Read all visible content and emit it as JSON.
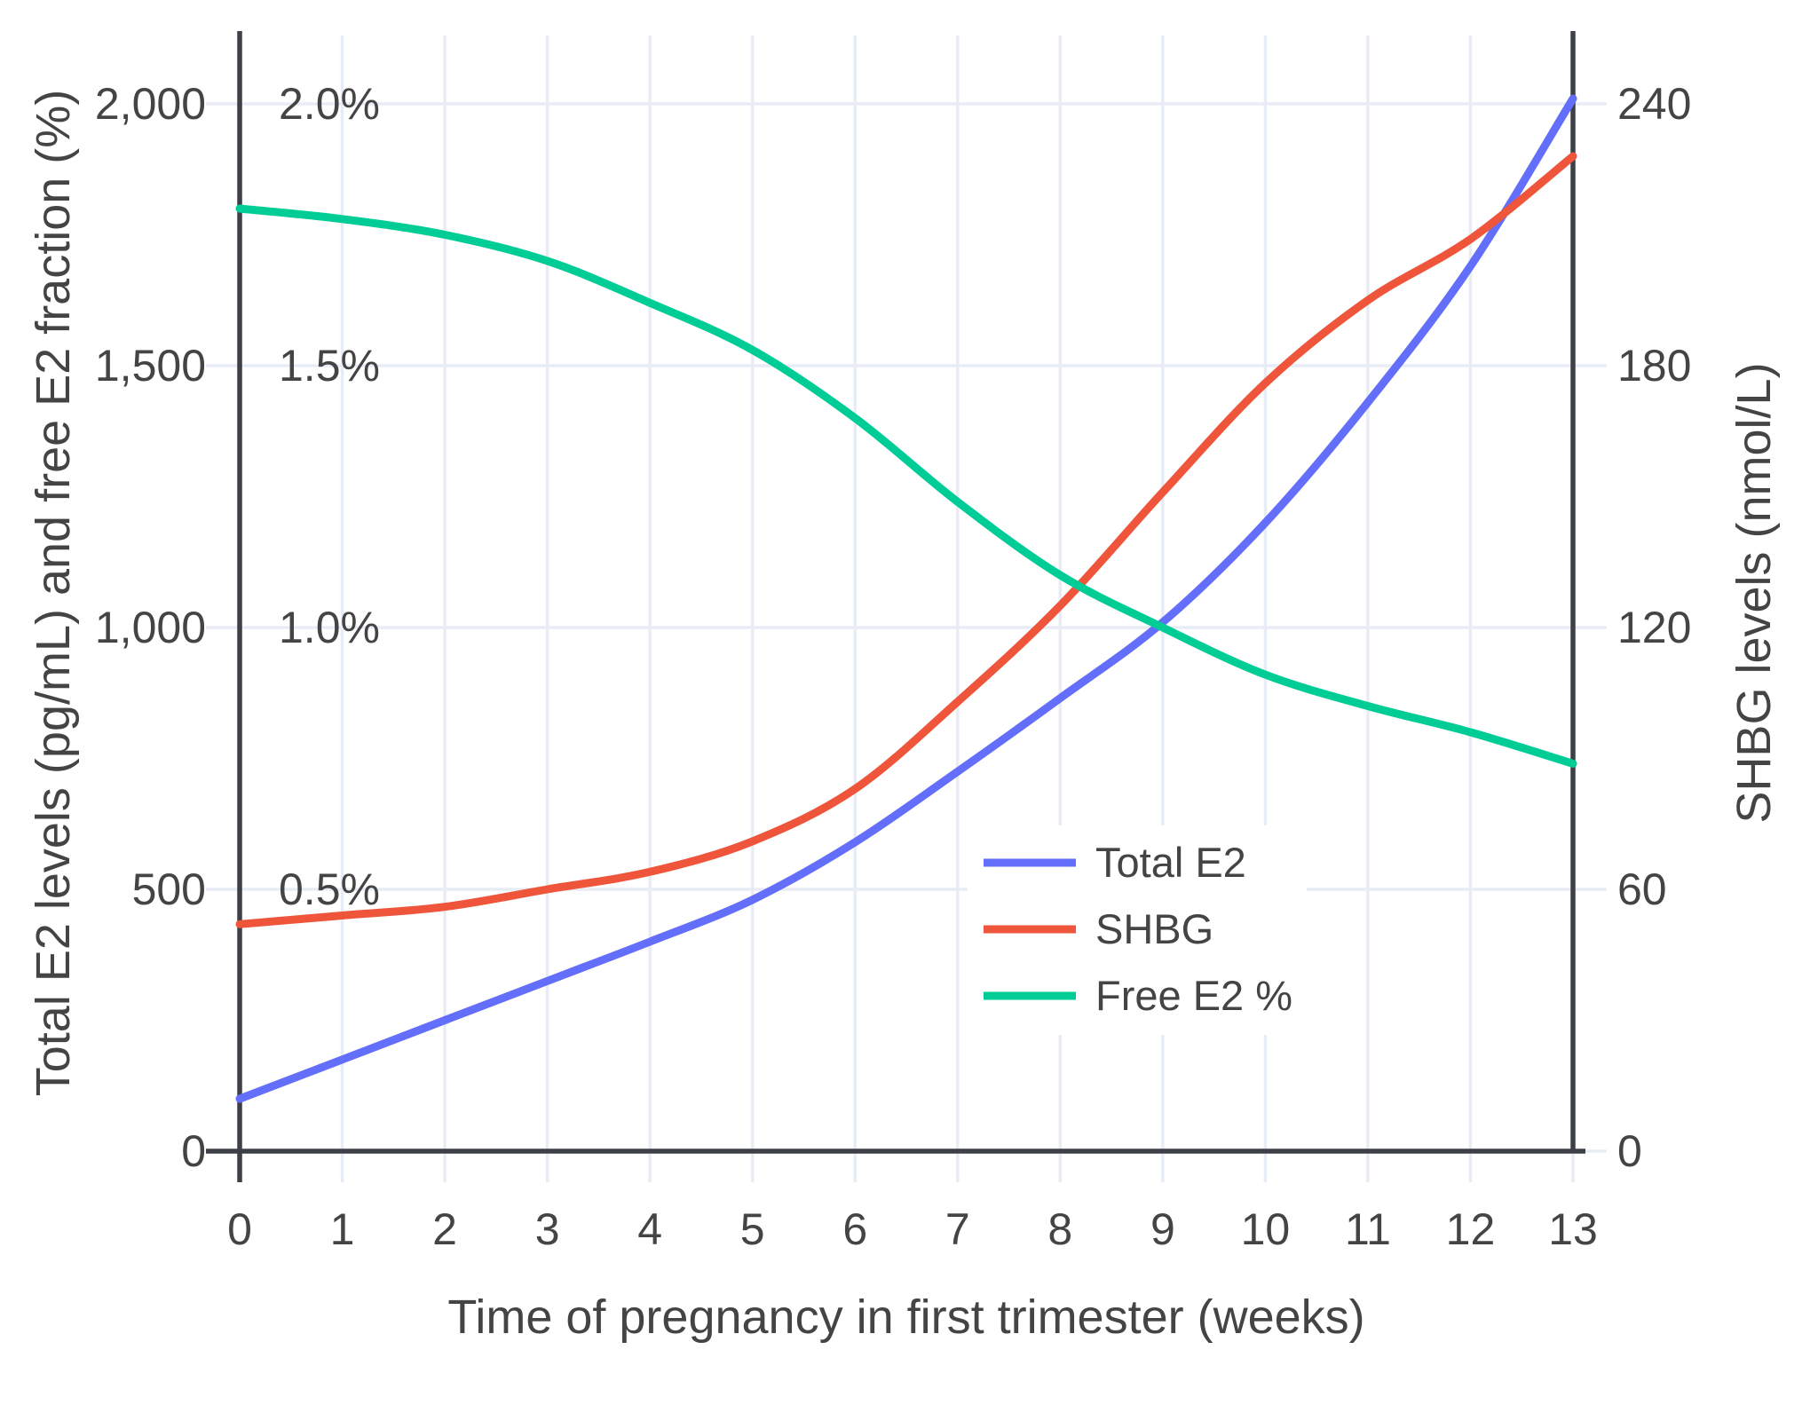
{
  "chart_data": {
    "type": "line",
    "x": [
      0,
      1,
      2,
      3,
      4,
      5,
      6,
      7,
      8,
      9,
      10,
      11,
      12,
      13
    ],
    "xlabel": "Time of pregnancy in first trimester (weeks)",
    "ylabel_left": "Total E2 levels (pg/mL) and free E2 fraction (%)",
    "ylabel_right": "SHBG levels (nmol/L)",
    "grid": true,
    "legend_position": "inside-bottom-right",
    "series": [
      {
        "name": "Total E2",
        "axis": "left",
        "units": "pg/mL",
        "color": "#636EFA",
        "values": [
          100,
          175,
          250,
          325,
          400,
          480,
          590,
          725,
          865,
          1010,
          1200,
          1430,
          1690,
          2010
        ]
      },
      {
        "name": "SHBG",
        "axis": "right",
        "units": "nmol/L",
        "color": "#EF553B",
        "values": [
          52,
          54,
          56,
          60,
          64,
          71,
          83,
          103,
          125,
          151,
          176,
          195,
          209,
          228
        ]
      },
      {
        "name": "Free E2 %",
        "axis": "left-percent",
        "units": "%",
        "color": "#00CC96",
        "values": [
          1.8,
          1.78,
          1.75,
          1.7,
          1.62,
          1.53,
          1.4,
          1.24,
          1.1,
          1.0,
          0.91,
          0.85,
          0.8,
          0.74
        ]
      }
    ],
    "axes": {
      "left": {
        "tick_labels": [
          "0",
          "500",
          "1,000",
          "1,500",
          "2,000"
        ],
        "tick_values": [
          0,
          500,
          1000,
          1500,
          2000
        ],
        "range": [
          0,
          2000
        ]
      },
      "left_percent": {
        "tick_labels": [
          "0.5%",
          "1.0%",
          "1.5%",
          "2.0%"
        ],
        "tick_values": [
          0.5,
          1.0,
          1.5,
          2.0
        ]
      },
      "right": {
        "tick_labels": [
          "0",
          "60",
          "120",
          "180",
          "240"
        ],
        "tick_values": [
          0,
          60,
          120,
          180,
          240
        ],
        "range": [
          0,
          240
        ]
      },
      "x": {
        "tick_labels": [
          "0",
          "1",
          "2",
          "3",
          "4",
          "5",
          "6",
          "7",
          "8",
          "9",
          "10",
          "11",
          "12",
          "13"
        ],
        "tick_values": [
          0,
          1,
          2,
          3,
          4,
          5,
          6,
          7,
          8,
          9,
          10,
          11,
          12,
          13
        ]
      }
    }
  },
  "legend": {
    "items": [
      {
        "label": "Total E2",
        "color": "#636EFA"
      },
      {
        "label": "SHBG",
        "color": "#EF553B"
      },
      {
        "label": "Free E2 %",
        "color": "#00CC96"
      }
    ]
  },
  "styles": {
    "background": "#FFFFFF",
    "grid_color": "#E8EDF5",
    "axis_line_color": "#3D4046",
    "text_color": "#444444"
  }
}
